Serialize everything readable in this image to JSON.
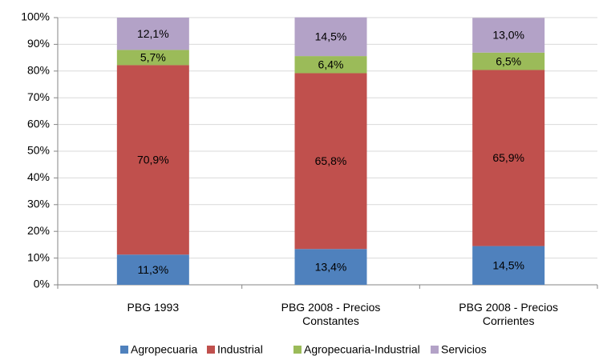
{
  "chart_data": {
    "type": "stacked_bar",
    "categories": [
      "PBG 1993",
      "PBG 2008 - Precios Constantes",
      "PBG 2008 - Precios Corrientes"
    ],
    "series": [
      {
        "name": "Agropecuaria",
        "color": "#4f81bd",
        "values": [
          11.3,
          13.4,
          14.5
        ],
        "value_labels": [
          "11,3%",
          "13,4%",
          "14,5%"
        ]
      },
      {
        "name": "Industrial",
        "color": "#c0504d",
        "values": [
          70.9,
          65.8,
          65.9
        ],
        "value_labels": [
          "70,9%",
          "65,8%",
          "65,9%"
        ]
      },
      {
        "name": "Agropecuaria-Industrial",
        "color": "#9bbb59",
        "values": [
          5.7,
          6.4,
          6.5
        ],
        "value_labels": [
          "5,7%",
          "6,4%",
          "6,5%"
        ]
      },
      {
        "name": "Servicios",
        "color": "#b3a2c7",
        "values": [
          12.1,
          14.5,
          13.0
        ],
        "value_labels": [
          "12,1%",
          "14,5%",
          "13,0%"
        ]
      }
    ],
    "ylim": [
      0,
      100
    ],
    "yticks": [
      {
        "value": 0,
        "label": "0%"
      },
      {
        "value": 10,
        "label": "10%"
      },
      {
        "value": 20,
        "label": "20%"
      },
      {
        "value": 30,
        "label": "30%"
      },
      {
        "value": 40,
        "label": "40%"
      },
      {
        "value": 50,
        "label": "50%"
      },
      {
        "value": 60,
        "label": "60%"
      },
      {
        "value": 70,
        "label": "70%"
      },
      {
        "value": 80,
        "label": "80%"
      },
      {
        "value": 90,
        "label": "90%"
      },
      {
        "value": 100,
        "label": "100%"
      }
    ],
    "grid": true,
    "legend": "bottom"
  }
}
